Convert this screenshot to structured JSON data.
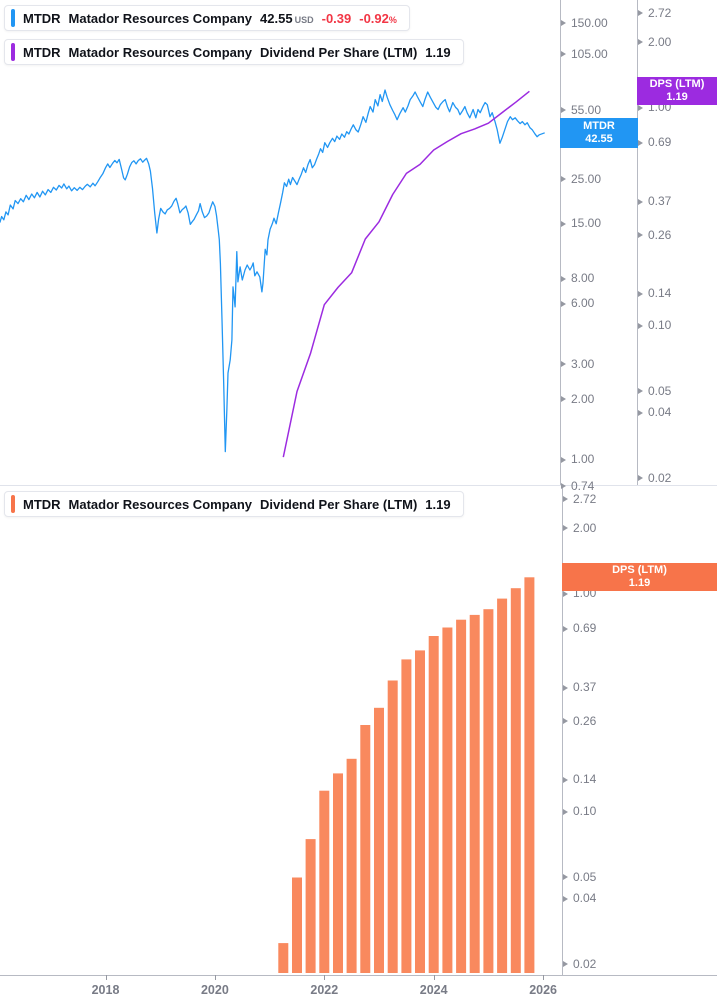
{
  "legend": {
    "price_row": {
      "symbol": "MTDR",
      "company": "Matador Resources Company",
      "price": "42.55",
      "currency": "USD",
      "change": "-0.39",
      "change_percent": "-0.92",
      "percent_sign": "%"
    },
    "dps_row": {
      "symbol": "MTDR",
      "company": "Matador Resources Company",
      "metric": "Dividend Per Share (LTM)",
      "value": "1.19"
    },
    "bottom_dps_row": {
      "symbol": "MTDR",
      "company": "Matador Resources Company",
      "metric": "Dividend Per Share (LTM)",
      "value": "1.19"
    }
  },
  "badges": {
    "price": {
      "line1": "MTDR",
      "line2": "42.55",
      "color": "#2196F3"
    },
    "dps_top": {
      "line1": "DPS (LTM)",
      "line2": "1.19",
      "color": "#9C2BE0"
    },
    "dps_bottom": {
      "line1": "DPS (LTM)",
      "line2": "1.19",
      "color": "#F7744A"
    }
  },
  "colors": {
    "price_line": "#2196F3",
    "dps_line": "#9C2BE0",
    "dps_bar": "#F9895E",
    "change_negative": "#F23645",
    "axis_text": "#787B86",
    "axis_line": "#B7BAC3",
    "panel_divider": "#E0E3EB"
  },
  "axes": {
    "top_price_ticks": [
      "150.00",
      "105.00",
      "55.00",
      "45.00",
      "25.00",
      "15.00",
      "8.00",
      "6.00",
      "3.00",
      "2.00",
      "1.00",
      "0.74"
    ],
    "top_dps_ticks": [
      "2.72",
      "2.00",
      "1.00",
      "0.69",
      "0.37",
      "0.26",
      "0.14",
      "0.10",
      "0.05",
      "0.04",
      "0.02"
    ],
    "bottom_dps_ticks": [
      "2.72",
      "2.00",
      "1.00",
      "0.69",
      "0.37",
      "0.26",
      "0.14",
      "0.10",
      "0.05",
      "0.04",
      "0.02"
    ],
    "x_ticks": [
      "2018",
      "2020",
      "2022",
      "2024",
      "2026"
    ]
  },
  "chart_data": [
    {
      "type": "line",
      "name": "MTDR share price",
      "color": "#2196F3",
      "axis": "price",
      "scale": "log",
      "x_unit": "year",
      "ylim": [
        0.74,
        150
      ],
      "points": [
        [
          2016.07,
          15.2
        ],
        [
          2016.1,
          16.3
        ],
        [
          2016.14,
          15.7
        ],
        [
          2016.18,
          17.2
        ],
        [
          2016.22,
          16.6
        ],
        [
          2016.26,
          18.6
        ],
        [
          2016.31,
          17.8
        ],
        [
          2016.35,
          19.6
        ],
        [
          2016.4,
          18.9
        ],
        [
          2016.45,
          20.0
        ],
        [
          2016.5,
          19.3
        ],
        [
          2016.55,
          20.8
        ],
        [
          2016.6,
          19.8
        ],
        [
          2016.65,
          21.1
        ],
        [
          2016.7,
          20.2
        ],
        [
          2016.75,
          21.5
        ],
        [
          2016.8,
          20.4
        ],
        [
          2016.85,
          21.8
        ],
        [
          2016.9,
          20.9
        ],
        [
          2016.95,
          22.2
        ],
        [
          2017.0,
          21.5
        ],
        [
          2017.05,
          22.8
        ],
        [
          2017.1,
          22.1
        ],
        [
          2017.15,
          23.3
        ],
        [
          2017.2,
          22.6
        ],
        [
          2017.24,
          23.7
        ],
        [
          2017.29,
          22.4
        ],
        [
          2017.33,
          23.1
        ],
        [
          2017.38,
          21.9
        ],
        [
          2017.43,
          22.7
        ],
        [
          2017.48,
          22.0
        ],
        [
          2017.53,
          22.8
        ],
        [
          2017.58,
          22.2
        ],
        [
          2017.63,
          23.1
        ],
        [
          2017.67,
          23.6
        ],
        [
          2017.72,
          22.9
        ],
        [
          2017.77,
          23.9
        ],
        [
          2017.81,
          23.2
        ],
        [
          2017.86,
          24.3
        ],
        [
          2017.9,
          25.4
        ],
        [
          2017.95,
          26.6
        ],
        [
          2018.0,
          28.5
        ],
        [
          2018.04,
          29.8
        ],
        [
          2018.08,
          28.6
        ],
        [
          2018.13,
          30.0
        ],
        [
          2018.17,
          31.0
        ],
        [
          2018.21,
          30.2
        ],
        [
          2018.25,
          31.4
        ],
        [
          2018.29,
          28.3
        ],
        [
          2018.33,
          25.4
        ],
        [
          2018.36,
          24.8
        ],
        [
          2018.4,
          26.5
        ],
        [
          2018.44,
          28.8
        ],
        [
          2018.48,
          30.3
        ],
        [
          2018.52,
          30.9
        ],
        [
          2018.56,
          29.8
        ],
        [
          2018.6,
          31.0
        ],
        [
          2018.64,
          31.6
        ],
        [
          2018.68,
          30.4
        ],
        [
          2018.71,
          31.0
        ],
        [
          2018.75,
          31.8
        ],
        [
          2018.79,
          29.8
        ],
        [
          2018.82,
          27.4
        ],
        [
          2018.86,
          22.5
        ],
        [
          2018.9,
          17.0
        ],
        [
          2018.94,
          13.5
        ],
        [
          2018.97,
          15.8
        ],
        [
          2019.01,
          17.9
        ],
        [
          2019.05,
          17.2
        ],
        [
          2019.09,
          16.8
        ],
        [
          2019.13,
          17.6
        ],
        [
          2019.17,
          17.9
        ],
        [
          2019.21,
          18.4
        ],
        [
          2019.25,
          19.4
        ],
        [
          2019.29,
          20.1
        ],
        [
          2019.32,
          18.9
        ],
        [
          2019.36,
          17.0
        ],
        [
          2019.4,
          17.6
        ],
        [
          2019.44,
          18.0
        ],
        [
          2019.47,
          18.4
        ],
        [
          2019.51,
          17.0
        ],
        [
          2019.55,
          14.9
        ],
        [
          2019.58,
          15.3
        ],
        [
          2019.62,
          15.8
        ],
        [
          2019.66,
          16.6
        ],
        [
          2019.7,
          17.4
        ],
        [
          2019.73,
          18.9
        ],
        [
          2019.77,
          17.2
        ],
        [
          2019.81,
          16.1
        ],
        [
          2019.85,
          16.4
        ],
        [
          2019.89,
          17.0
        ],
        [
          2019.92,
          18.0
        ],
        [
          2019.96,
          19.3
        ],
        [
          2020.0,
          18.3
        ],
        [
          2020.03,
          16.5
        ],
        [
          2020.06,
          14.0
        ],
        [
          2020.08,
          12.5
        ],
        [
          2020.1,
          9.5
        ],
        [
          2020.13,
          5.0
        ],
        [
          2020.16,
          2.4
        ],
        [
          2020.19,
          1.1
        ],
        [
          2020.22,
          1.8
        ],
        [
          2020.24,
          2.71
        ],
        [
          2020.28,
          3.15
        ],
        [
          2020.31,
          3.96
        ],
        [
          2020.33,
          7.27
        ],
        [
          2020.37,
          5.78
        ],
        [
          2020.4,
          10.9
        ],
        [
          2020.42,
          7.7
        ],
        [
          2020.46,
          9.15
        ],
        [
          2020.5,
          7.87
        ],
        [
          2020.55,
          8.83
        ],
        [
          2020.59,
          9.35
        ],
        [
          2020.64,
          8.83
        ],
        [
          2020.68,
          9.25
        ],
        [
          2020.7,
          9.58
        ],
        [
          2020.73,
          8.26
        ],
        [
          2020.77,
          8.65
        ],
        [
          2020.82,
          8.16
        ],
        [
          2020.86,
          6.87
        ],
        [
          2020.88,
          7.61
        ],
        [
          2020.92,
          11.2
        ],
        [
          2020.95,
          10.5
        ],
        [
          2020.97,
          12.5
        ],
        [
          2021.01,
          14.1
        ],
        [
          2021.05,
          15.0
        ],
        [
          2021.08,
          16.0
        ],
        [
          2021.12,
          15.0
        ],
        [
          2021.16,
          17.0
        ],
        [
          2021.2,
          19.0
        ],
        [
          2021.24,
          21.5
        ],
        [
          2021.27,
          24.0
        ],
        [
          2021.31,
          23.0
        ],
        [
          2021.35,
          25.0
        ],
        [
          2021.38,
          23.5
        ],
        [
          2021.42,
          25.5
        ],
        [
          2021.46,
          24.5
        ],
        [
          2021.5,
          23.5
        ],
        [
          2021.54,
          25.0
        ],
        [
          2021.58,
          26.5
        ],
        [
          2021.62,
          28.5
        ],
        [
          2021.66,
          27.0
        ],
        [
          2021.7,
          29.5
        ],
        [
          2021.74,
          31.3
        ],
        [
          2021.78,
          28.5
        ],
        [
          2021.82,
          29.5
        ],
        [
          2021.86,
          31.5
        ],
        [
          2021.9,
          33.5
        ],
        [
          2021.93,
          35.5
        ],
        [
          2021.97,
          34.0
        ],
        [
          2022.01,
          38.0
        ],
        [
          2022.06,
          36.0
        ],
        [
          2022.1,
          38.0
        ],
        [
          2022.15,
          40.0
        ],
        [
          2022.19,
          38.5
        ],
        [
          2022.23,
          41.0
        ],
        [
          2022.28,
          39.5
        ],
        [
          2022.32,
          42.0
        ],
        [
          2022.37,
          40.5
        ],
        [
          2022.41,
          43.1
        ],
        [
          2022.45,
          42.0
        ],
        [
          2022.49,
          44.5
        ],
        [
          2022.53,
          46.7
        ],
        [
          2022.58,
          44.0
        ],
        [
          2022.62,
          43.0
        ],
        [
          2022.67,
          47.0
        ],
        [
          2022.71,
          51.2
        ],
        [
          2022.76,
          48.0
        ],
        [
          2022.8,
          53.0
        ],
        [
          2022.84,
          57.5
        ],
        [
          2022.89,
          54.0
        ],
        [
          2022.93,
          62.3
        ],
        [
          2022.98,
          58.0
        ],
        [
          2023.02,
          66.0
        ],
        [
          2023.06,
          61.0
        ],
        [
          2023.11,
          69.6
        ],
        [
          2023.15,
          64.0
        ],
        [
          2023.2,
          58.8
        ],
        [
          2023.25,
          55.0
        ],
        [
          2023.29,
          52.4
        ],
        [
          2023.33,
          49.5
        ],
        [
          2023.38,
          53.0
        ],
        [
          2023.44,
          56.8
        ],
        [
          2023.48,
          54.0
        ],
        [
          2023.53,
          58.0
        ],
        [
          2023.57,
          62.3
        ],
        [
          2023.62,
          65.0
        ],
        [
          2023.66,
          68.0
        ],
        [
          2023.7,
          64.6
        ],
        [
          2023.75,
          60.9
        ],
        [
          2023.8,
          57.5
        ],
        [
          2023.84,
          62.3
        ],
        [
          2023.89,
          68.0
        ],
        [
          2023.94,
          63.9
        ],
        [
          2023.99,
          60.2
        ],
        [
          2024.04,
          57.0
        ],
        [
          2024.08,
          55.6
        ],
        [
          2024.12,
          58.8
        ],
        [
          2024.17,
          61.0
        ],
        [
          2024.21,
          62.3
        ],
        [
          2024.25,
          57.5
        ],
        [
          2024.29,
          54.2
        ],
        [
          2024.35,
          60.2
        ],
        [
          2024.4,
          57.0
        ],
        [
          2024.44,
          55.6
        ],
        [
          2024.48,
          52.4
        ],
        [
          2024.53,
          55.0
        ],
        [
          2024.57,
          57.5
        ],
        [
          2024.61,
          53.6
        ],
        [
          2024.66,
          50.6
        ],
        [
          2024.72,
          55.6
        ],
        [
          2024.77,
          50.6
        ],
        [
          2024.81,
          55.6
        ],
        [
          2024.85,
          53.6
        ],
        [
          2024.9,
          57.5
        ],
        [
          2024.94,
          60.2
        ],
        [
          2024.98,
          58.8
        ],
        [
          2025.03,
          51.2
        ],
        [
          2025.07,
          53.6
        ],
        [
          2025.12,
          48.4
        ],
        [
          2025.16,
          44.1
        ],
        [
          2025.21,
          37.8
        ],
        [
          2025.25,
          40.2
        ],
        [
          2025.3,
          44.1
        ],
        [
          2025.35,
          48.4
        ],
        [
          2025.4,
          51.2
        ],
        [
          2025.44,
          49.5
        ],
        [
          2025.49,
          50.6
        ],
        [
          2025.53,
          48.9
        ],
        [
          2025.58,
          47.3
        ],
        [
          2025.62,
          48.4
        ],
        [
          2025.67,
          46.7
        ],
        [
          2025.71,
          47.8
        ],
        [
          2025.76,
          45.1
        ],
        [
          2025.8,
          44.1
        ],
        [
          2025.85,
          42.1
        ],
        [
          2025.89,
          40.7
        ],
        [
          2025.93,
          41.6
        ],
        [
          2025.98,
          42.1
        ],
        [
          2026.03,
          42.6
        ]
      ]
    },
    {
      "type": "line",
      "name": "Dividend Per Share (LTM)",
      "color": "#9C2BE0",
      "axis": "dps",
      "scale": "log",
      "x_unit": "year",
      "ylim": [
        0.02,
        2.72
      ],
      "points": [
        [
          2021.25,
          0.025
        ],
        [
          2021.5,
          0.05
        ],
        [
          2021.75,
          0.075
        ],
        [
          2022.0,
          0.125
        ],
        [
          2022.25,
          0.15
        ],
        [
          2022.5,
          0.175
        ],
        [
          2022.75,
          0.25
        ],
        [
          2023.0,
          0.3
        ],
        [
          2023.25,
          0.4
        ],
        [
          2023.5,
          0.5
        ],
        [
          2023.75,
          0.55
        ],
        [
          2024.0,
          0.64
        ],
        [
          2024.25,
          0.7
        ],
        [
          2024.5,
          0.76
        ],
        [
          2024.75,
          0.8
        ],
        [
          2025.0,
          0.85
        ],
        [
          2025.25,
          0.95
        ],
        [
          2025.5,
          1.06
        ],
        [
          2025.75,
          1.19
        ]
      ]
    },
    {
      "type": "bar",
      "name": "Dividend Per Share (LTM)",
      "color": "#F9895E",
      "axis": "dps",
      "scale": "log",
      "x_unit": "year",
      "ylim": [
        0.02,
        2.72
      ],
      "points": [
        [
          2021.25,
          0.025
        ],
        [
          2021.5,
          0.05
        ],
        [
          2021.75,
          0.075
        ],
        [
          2022.0,
          0.125
        ],
        [
          2022.25,
          0.15
        ],
        [
          2022.5,
          0.175
        ],
        [
          2022.75,
          0.25
        ],
        [
          2023.0,
          0.3
        ],
        [
          2023.25,
          0.4
        ],
        [
          2023.5,
          0.5
        ],
        [
          2023.75,
          0.55
        ],
        [
          2024.0,
          0.64
        ],
        [
          2024.25,
          0.7
        ],
        [
          2024.5,
          0.76
        ],
        [
          2024.75,
          0.8
        ],
        [
          2025.0,
          0.85
        ],
        [
          2025.25,
          0.95
        ],
        [
          2025.5,
          1.06
        ],
        [
          2025.75,
          1.19
        ]
      ]
    }
  ]
}
